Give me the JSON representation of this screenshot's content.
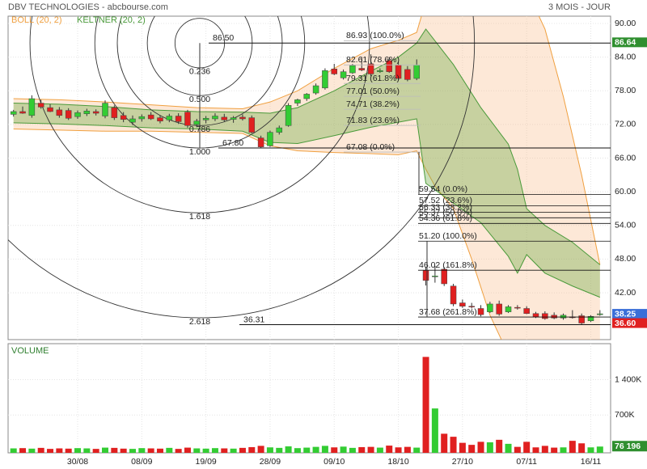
{
  "chart_data": {
    "type": "candlestick",
    "title": "DBV TECHNOLOGIES - abcbourse.com",
    "period": "3 MOIS - JOUR",
    "categories": [
      null,
      null,
      null,
      null,
      null,
      null,
      null,
      "30/08",
      null,
      null,
      null,
      null,
      null,
      null,
      "08/09",
      null,
      null,
      null,
      null,
      null,
      null,
      "19/09",
      null,
      null,
      null,
      null,
      null,
      null,
      "28/09",
      null,
      null,
      null,
      null,
      null,
      null,
      "09/10",
      null,
      null,
      null,
      null,
      null,
      null,
      "18/10",
      null,
      null,
      null,
      null,
      null,
      null,
      "27/10",
      null,
      null,
      null,
      null,
      null,
      null,
      "07/11",
      null,
      null,
      null,
      null,
      null,
      null,
      "16/11",
      null
    ],
    "open": [
      73.8,
      74.3,
      73.6,
      75.8,
      75.0,
      74.6,
      74.5,
      73.4,
      73.9,
      74.3,
      73.5,
      75.0,
      73.6,
      72.4,
      73.0,
      73.7,
      73.2,
      72.8,
      73.5,
      74.2,
      72.0,
      72.8,
      73.0,
      73.3,
      72.9,
      73.3,
      73.2,
      69.6,
      68.2,
      70.6,
      71.8,
      75.8,
      76.6,
      77.6,
      78.5,
      81.9,
      80.3,
      81.2,
      82.0,
      82.8,
      81.4,
      83.4,
      82.6,
      81.8,
      80.2,
      46.0,
      45.0,
      46.2,
      43.2,
      40.2,
      39.6,
      39.2,
      38.6,
      40.0,
      38.6,
      39.4,
      39.2,
      38.3,
      38.3,
      38.0,
      37.5,
      37.7,
      37.9,
      37.0,
      38.1
    ],
    "high": [
      74.6,
      75.2,
      77.2,
      76.4,
      75.6,
      75.1,
      74.9,
      74.5,
      74.8,
      74.7,
      76.3,
      75.4,
      74.2,
      73.6,
      73.8,
      74.2,
      73.6,
      73.9,
      74.0,
      74.6,
      73.0,
      73.5,
      74.0,
      73.9,
      73.5,
      73.8,
      73.6,
      70.0,
      70.9,
      71.8,
      75.8,
      76.6,
      77.6,
      79.3,
      82.0,
      82.8,
      81.8,
      82.8,
      84.0,
      84.5,
      82.0,
      84.0,
      83.2,
      82.4,
      83.6,
      46.6,
      46.8,
      46.6,
      43.6,
      40.8,
      40.2,
      39.8,
      40.4,
      40.6,
      39.8,
      39.8,
      39.6,
      38.6,
      38.7,
      38.5,
      38.3,
      38.9,
      38.3,
      38.0,
      38.9
    ],
    "low": [
      73.4,
      73.9,
      73.2,
      74.8,
      74.2,
      73.2,
      72.8,
      73.0,
      73.5,
      73.6,
      73.1,
      72.8,
      72.4,
      71.9,
      72.5,
      72.8,
      72.2,
      72.4,
      72.1,
      71.4,
      71.5,
      72.2,
      72.6,
      72.5,
      72.3,
      72.7,
      70.4,
      67.8,
      68.0,
      70.2,
      71.6,
      75.3,
      76.2,
      77.3,
      78.2,
      80.8,
      80.0,
      81.0,
      81.5,
      80.6,
      81.2,
      81.2,
      79.9,
      79.7,
      79.9,
      43.3,
      43.8,
      43.2,
      39.6,
      39.3,
      39.2,
      37.8,
      38.4,
      37.9,
      38.4,
      39.0,
      38.2,
      37.5,
      37.2,
      37.3,
      37.2,
      37.4,
      36.4,
      36.8,
      37.9
    ],
    "close": [
      74.3,
      74.0,
      76.6,
      75.1,
      74.3,
      73.6,
      73.1,
      74.1,
      74.4,
      74.0,
      75.8,
      73.2,
      72.9,
      73.0,
      73.4,
      73.0,
      72.6,
      73.5,
      72.5,
      71.8,
      72.6,
      73.1,
      73.5,
      72.8,
      73.2,
      73.0,
      70.6,
      68.0,
      70.6,
      71.4,
      75.4,
      76.4,
      77.4,
      78.9,
      81.6,
      81.0,
      81.4,
      82.5,
      81.7,
      81.0,
      81.6,
      81.4,
      80.2,
      80.0,
      82.6,
      44.2,
      45.0,
      43.6,
      40.0,
      39.6,
      39.5,
      38.1,
      40.0,
      38.2,
      39.5,
      39.3,
      38.3,
      37.7,
      37.4,
      37.5,
      38.0,
      37.6,
      36.6,
      37.8,
      38.25
    ],
    "up_color": "#33cc33",
    "down_color": "#e02020",
    "ylim": [
      33.65,
      91.3
    ],
    "yticks": [
      {
        "value": 90,
        "label": "90.00"
      },
      {
        "value": 84,
        "label": "84.00"
      },
      {
        "value": 78,
        "label": "78.00"
      },
      {
        "value": 72,
        "label": "72.00"
      },
      {
        "value": 66,
        "label": "66.00"
      },
      {
        "value": 60,
        "label": "60.00"
      },
      {
        "value": 54,
        "label": "54.00"
      },
      {
        "value": 48,
        "label": "48.00"
      },
      {
        "value": 42,
        "label": "42.00"
      }
    ],
    "grid": true,
    "bands": [
      {
        "name": "BOLL (20, 2)",
        "color": "#f0a040",
        "fill": "rgba(250,190,140,0.35)",
        "x": [
          0,
          5,
          10,
          15,
          20,
          25,
          28,
          31,
          35,
          39,
          42,
          44,
          45,
          46,
          48,
          50,
          52,
          54,
          56,
          58,
          60,
          62,
          64
        ],
        "upper": [
          76.6,
          76.4,
          76.0,
          75.5,
          75.0,
          74.8,
          76.0,
          78.0,
          82.0,
          85.5,
          87.0,
          88.4,
          94,
          97,
          99,
          100,
          100,
          99,
          96,
          89,
          77,
          63,
          47
        ],
        "lower": [
          71.2,
          71.0,
          70.8,
          70.8,
          70.6,
          70.4,
          68.2,
          67.3,
          67.0,
          66.8,
          66.6,
          67.3,
          64,
          61,
          57,
          48,
          38,
          31,
          28,
          27,
          27,
          27,
          28
        ]
      },
      {
        "name": "KELTNER (20, 2)",
        "color": "#4a9a3a",
        "fill": "rgba(110,170,70,0.38)",
        "x": [
          0,
          5,
          10,
          15,
          20,
          25,
          28,
          31,
          35,
          39,
          42,
          44,
          45,
          48,
          51,
          54,
          55,
          56,
          58,
          61,
          64
        ],
        "upper": [
          75.8,
          75.6,
          75.2,
          74.6,
          74.3,
          74.2,
          74.0,
          75.0,
          78.0,
          81.5,
          84.0,
          86.5,
          89.0,
          82.7,
          75.0,
          68.5,
          64.0,
          57.0,
          54.0,
          51.0,
          47.0
        ],
        "lower": [
          72.3,
          72.1,
          71.8,
          71.4,
          71.2,
          70.8,
          68.8,
          68.6,
          70.0,
          71.5,
          72.4,
          73.0,
          61.5,
          58.0,
          54.5,
          48.5,
          45.5,
          48.8,
          45.5,
          43.2,
          41.2
        ]
      }
    ],
    "fan": {
      "high": {
        "value": 86.5,
        "label": "86.50"
      },
      "low": {
        "value": 67.8,
        "label": "67.80"
      },
      "extension": 36.31,
      "levels": [
        0.236,
        {
          "value": 0.5,
          "label": "0.500"
        },
        0.786,
        {
          "value": 1,
          "label": "1.000"
        },
        1.618,
        2.618
      ]
    },
    "retracements": [
      {
        "levels": [
          {
            "value": 86.93,
            "label": "86.93 (100.0%)"
          },
          {
            "value": 82.61,
            "label": "82.61 (78.6%)"
          },
          {
            "value": 79.31,
            "label": "79.31 (61.8%)"
          },
          {
            "value": 77.01,
            "label": "77.01 (50.0%)"
          },
          {
            "value": 74.71,
            "label": "74.71 (38.2%)"
          },
          {
            "value": 71.83,
            "label": "71.83 (23.6%)"
          },
          {
            "value": 67.08,
            "label": "67.08 (0.0%)"
          }
        ]
      },
      {
        "levels": [
          {
            "value": 59.54,
            "label": "59.54 (0.0%)"
          },
          {
            "value": 57.52,
            "label": "57.52 (23.6%)"
          },
          {
            "value": 56.33,
            "label": "56.33 (38.2%)"
          },
          {
            "value": 55.37,
            "label": "55.37 (50.0%)"
          },
          {
            "value": 54.36,
            "label": "54.36 (61.8%)"
          },
          {
            "value": 51.2,
            "label": "51.20 (100.0%)"
          },
          {
            "value": 46.02,
            "label": "46.02 (161.8%)"
          },
          {
            "value": 37.68,
            "label": "37.68 (261.8%)"
          }
        ]
      }
    ],
    "markers": [
      {
        "value": 86.64,
        "color": "#2f8f2f"
      },
      {
        "value": 38.25,
        "color": "#3a6fd8"
      },
      {
        "value": 36.6,
        "label": "36.60",
        "color": "#e02020"
      }
    ],
    "volume": {
      "title": "VOLUME",
      "values": [
        40000,
        45000,
        35000,
        50000,
        30000,
        40000,
        35000,
        45000,
        40000,
        30000,
        55000,
        50000,
        35000,
        30000,
        45000,
        40000,
        35000,
        50000,
        30000,
        55000,
        40000,
        35000,
        45000,
        40000,
        35000,
        50000,
        65000,
        90000,
        60000,
        50000,
        80000,
        45000,
        55000,
        70000,
        90000,
        60000,
        75000,
        50000,
        65000,
        70000,
        55000,
        95000,
        60000,
        70000,
        55000,
        1850000,
        830000,
        330000,
        270000,
        150000,
        110000,
        170000,
        160000,
        210000,
        130000,
        70000,
        170000,
        60000,
        90000,
        55000,
        60000,
        190000,
        140000,
        60000,
        76196
      ],
      "ylim": [
        0,
        2000000
      ],
      "yticks": [
        {
          "value": 1400000,
          "label": "1 400K"
        },
        {
          "value": 700000,
          "label": "700K"
        }
      ],
      "last": {
        "value": 76196,
        "label": "76 196",
        "color": "#2f8f2f"
      }
    }
  }
}
